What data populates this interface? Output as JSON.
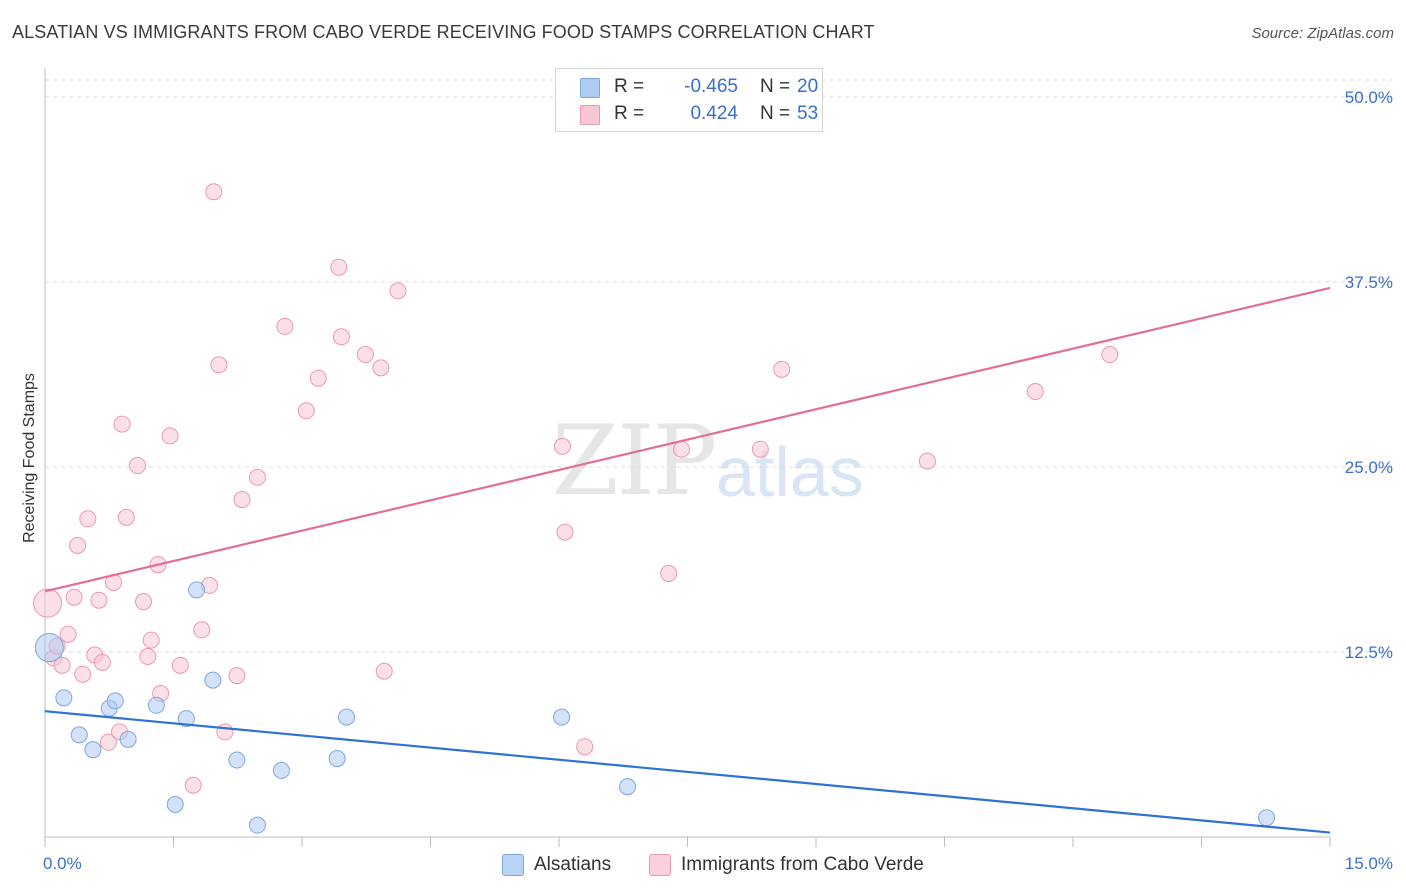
{
  "title": "ALSATIAN VS IMMIGRANTS FROM CABO VERDE RECEIVING FOOD STAMPS CORRELATION CHART",
  "source": "Source: ZipAtlas.com",
  "watermark": {
    "zip": "ZIP",
    "atlas": "atlas"
  },
  "legend": {
    "rows": [
      {
        "r_label": "R =",
        "r_value": "-0.465",
        "n_label": "N =",
        "n_value": "20",
        "color": "#aecbf2",
        "border": "#7ea7e0"
      },
      {
        "r_label": "R =",
        "r_value": "0.424",
        "n_label": "N =",
        "n_value": "53",
        "color": "#f9c6d4",
        "border": "#eb98b0"
      }
    ]
  },
  "bottom_legend": [
    {
      "label": "Alsatians",
      "color": "#b9d3f4",
      "border": "#7ea7e0"
    },
    {
      "label": "Immigrants from Cabo Verde",
      "color": "#fbd0dc",
      "border": "#eb98b0"
    }
  ],
  "chart_data": {
    "type": "scatter",
    "title": "ALSATIAN VS IMMIGRANTS FROM CABO VERDE RECEIVING FOOD STAMPS CORRELATION CHART",
    "xlabel": "",
    "ylabel": "Receiving Food Stamps",
    "xlim": [
      0,
      15
    ],
    "ylim": [
      0,
      50
    ],
    "x_tick_labels": [
      "0.0%",
      "15.0%"
    ],
    "y_ticks": [
      12.5,
      25,
      37.5,
      50
    ],
    "y_tick_labels": [
      "12.5%",
      "25.0%",
      "37.5%",
      "50.0%"
    ],
    "grid": "horizontal dashed",
    "series": [
      {
        "name": "Alsatians",
        "color": "#aecbf2",
        "stroke": "#7ea7e0",
        "line_color": "#2f72d2",
        "trend": {
          "x": [
            0,
            15
          ],
          "y": [
            8.5,
            0.3
          ]
        },
        "points": [
          {
            "x": 0.05,
            "y": 12.8,
            "big": true
          },
          {
            "x": 0.22,
            "y": 9.4
          },
          {
            "x": 0.4,
            "y": 6.9
          },
          {
            "x": 0.56,
            "y": 5.9
          },
          {
            "x": 0.75,
            "y": 8.7
          },
          {
            "x": 0.82,
            "y": 9.2
          },
          {
            "x": 0.97,
            "y": 6.6
          },
          {
            "x": 1.3,
            "y": 8.9
          },
          {
            "x": 1.52,
            "y": 2.2
          },
          {
            "x": 1.65,
            "y": 8.0
          },
          {
            "x": 1.77,
            "y": 16.7
          },
          {
            "x": 1.96,
            "y": 10.6
          },
          {
            "x": 2.24,
            "y": 5.2
          },
          {
            "x": 2.48,
            "y": 0.8
          },
          {
            "x": 2.76,
            "y": 4.5
          },
          {
            "x": 3.41,
            "y": 5.3
          },
          {
            "x": 3.52,
            "y": 8.1
          },
          {
            "x": 6.03,
            "y": 8.1
          },
          {
            "x": 6.8,
            "y": 3.4
          },
          {
            "x": 14.26,
            "y": 1.3
          }
        ]
      },
      {
        "name": "Immigrants from Cabo Verde",
        "color": "#f9c6d4",
        "stroke": "#eb98b0",
        "line_color": "#e26e95",
        "trend": {
          "x": [
            0,
            15
          ],
          "y": [
            16.6,
            37.1
          ]
        },
        "points": [
          {
            "x": 0.03,
            "y": 15.8,
            "big": true
          },
          {
            "x": 0.1,
            "y": 12.1
          },
          {
            "x": 0.14,
            "y": 12.9
          },
          {
            "x": 0.2,
            "y": 11.6
          },
          {
            "x": 0.27,
            "y": 13.7
          },
          {
            "x": 0.34,
            "y": 16.2
          },
          {
            "x": 0.38,
            "y": 19.7
          },
          {
            "x": 0.44,
            "y": 11.0
          },
          {
            "x": 0.5,
            "y": 21.5
          },
          {
            "x": 0.58,
            "y": 12.3
          },
          {
            "x": 0.63,
            "y": 16.0
          },
          {
            "x": 0.67,
            "y": 11.8
          },
          {
            "x": 0.74,
            "y": 6.4
          },
          {
            "x": 0.8,
            "y": 17.2
          },
          {
            "x": 0.87,
            "y": 7.1
          },
          {
            "x": 0.9,
            "y": 27.9
          },
          {
            "x": 0.95,
            "y": 21.6
          },
          {
            "x": 1.08,
            "y": 25.1
          },
          {
            "x": 1.15,
            "y": 15.9
          },
          {
            "x": 1.2,
            "y": 12.2
          },
          {
            "x": 1.24,
            "y": 13.3
          },
          {
            "x": 1.32,
            "y": 18.4
          },
          {
            "x": 1.35,
            "y": 9.7
          },
          {
            "x": 1.46,
            "y": 27.1
          },
          {
            "x": 1.58,
            "y": 11.6
          },
          {
            "x": 1.73,
            "y": 3.5
          },
          {
            "x": 1.83,
            "y": 14.0
          },
          {
            "x": 1.92,
            "y": 17.0
          },
          {
            "x": 1.97,
            "y": 43.6
          },
          {
            "x": 2.03,
            "y": 31.9
          },
          {
            "x": 2.1,
            "y": 7.1
          },
          {
            "x": 2.24,
            "y": 10.9
          },
          {
            "x": 2.3,
            "y": 22.8
          },
          {
            "x": 2.48,
            "y": 24.3
          },
          {
            "x": 2.8,
            "y": 34.5
          },
          {
            "x": 3.05,
            "y": 28.8
          },
          {
            "x": 3.19,
            "y": 31.0
          },
          {
            "x": 3.43,
            "y": 38.5
          },
          {
            "x": 3.46,
            "y": 33.8
          },
          {
            "x": 3.74,
            "y": 32.6
          },
          {
            "x": 3.92,
            "y": 31.7
          },
          {
            "x": 3.96,
            "y": 11.2
          },
          {
            "x": 4.12,
            "y": 36.9
          },
          {
            "x": 6.04,
            "y": 26.4
          },
          {
            "x": 6.07,
            "y": 20.6
          },
          {
            "x": 6.3,
            "y": 6.1
          },
          {
            "x": 7.28,
            "y": 17.8
          },
          {
            "x": 7.43,
            "y": 26.2
          },
          {
            "x": 8.35,
            "y": 26.2
          },
          {
            "x": 8.6,
            "y": 31.6
          },
          {
            "x": 10.3,
            "y": 25.4
          },
          {
            "x": 11.56,
            "y": 30.1
          },
          {
            "x": 12.43,
            "y": 32.6
          }
        ]
      }
    ]
  }
}
